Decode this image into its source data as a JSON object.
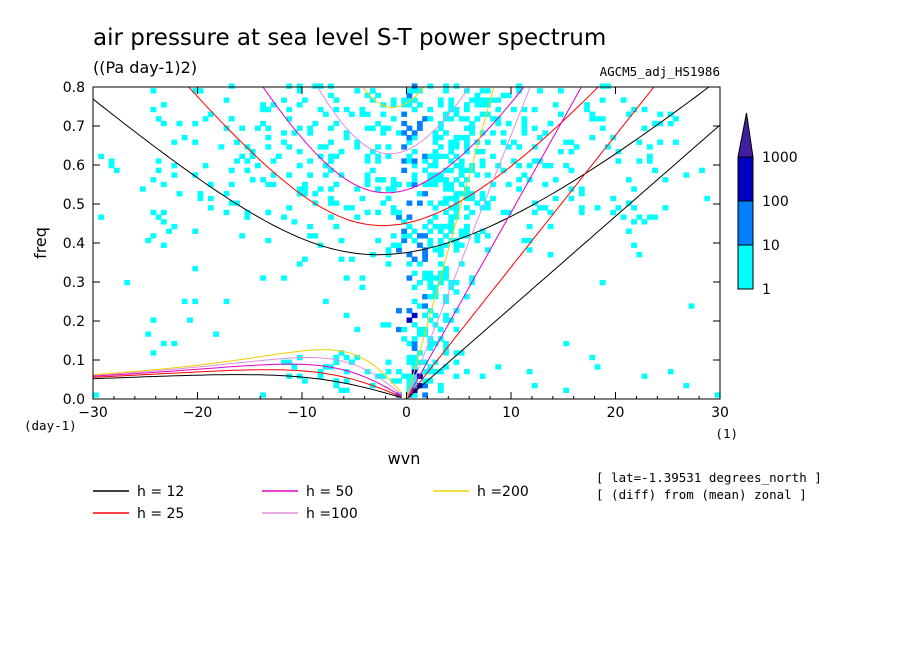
{
  "chart_data": {
    "type": "heatmap",
    "title": "air pressure at sea level S-T power spectrum",
    "units": "((Pa day-1)2)",
    "dataset": "AGCM5_adj_HS1986",
    "xlabel": "wvn",
    "ylabel": "freq",
    "x_unit": "(1)",
    "y_unit": "(day-1)",
    "xlim": [
      -30,
      30
    ],
    "ylim": [
      0,
      0.8
    ],
    "xticks": [
      "-30",
      "-20",
      "-10",
      "0",
      "10",
      "20",
      "30"
    ],
    "yticks": [
      "0.0",
      "0.1",
      "0.2",
      "0.3",
      "0.4",
      "0.5",
      "0.6",
      "0.7",
      "0.8"
    ],
    "colorbar": {
      "levels": [
        "1",
        "10",
        "100",
        "1000"
      ],
      "colors": [
        "#00ffff",
        "#0080ff",
        "#0000c0",
        "#4020a0"
      ]
    },
    "info_lines": [
      "[ lat=-1.39531 degrees_north ]",
      "[ (diff) from (mean) zonal ]"
    ],
    "series": [
      {
        "name": "h = 12",
        "color": "#000000"
      },
      {
        "name": "h = 25",
        "color": "#ff0000"
      },
      {
        "name": "h = 50",
        "color": "#e000c0"
      },
      {
        "name": "h =100",
        "color": "#e090e0"
      },
      {
        "name": "h =200",
        "color": "#f0d000"
      }
    ],
    "legend_position": "bottom"
  }
}
